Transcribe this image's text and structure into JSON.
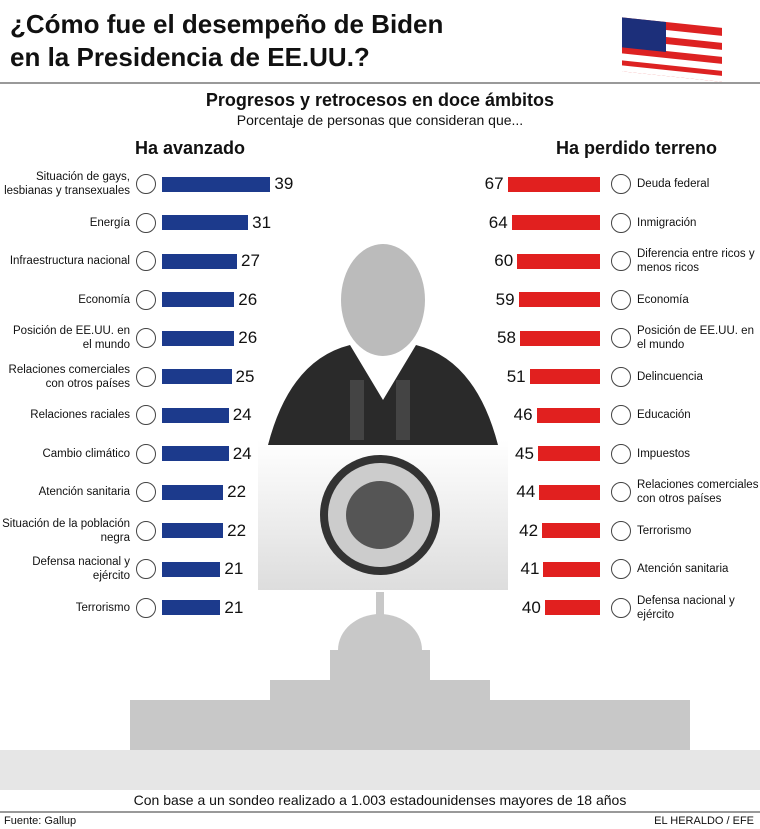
{
  "header": {
    "title": "¿Cómo fue el desempeño de Biden en la Presidencia de EE.UU.?"
  },
  "intro": {
    "heading": "Progresos y retrocesos en doce ámbitos",
    "subheading": "Porcentaje de personas que consideran que..."
  },
  "chart_data": [
    {
      "type": "bar",
      "orientation": "horizontal",
      "title": "Ha avanzado",
      "color": "#1c3a8c",
      "categories": [
        "Situación de gays, lesbianas y transexuales",
        "Energía",
        "Infraestructura nacional",
        "Economía",
        "Posición de EE.UU. en el mundo",
        "Relaciones comerciales con otros países",
        "Relaciones raciales",
        "Cambio climático",
        "Atención sanitaria",
        "Situación de la población negra",
        "Defensa nacional y ejército",
        "Terrorismo"
      ],
      "values": [
        39,
        31,
        27,
        26,
        26,
        25,
        24,
        24,
        22,
        22,
        21,
        21
      ]
    },
    {
      "type": "bar",
      "orientation": "horizontal",
      "title": "Ha perdido terreno",
      "color": "#e1201f",
      "categories": [
        "Deuda federal",
        "Inmigración",
        "Diferencia entre ricos y menos ricos",
        "Economía",
        "Posición de EE.UU. en el mundo",
        "Delincuencia",
        "Educación",
        "Impuestos",
        "Relaciones comerciales con otros países",
        "Terrorismo",
        "Atención sanitaria",
        "Defensa nacional y ejército"
      ],
      "values": [
        67,
        64,
        60,
        59,
        58,
        51,
        46,
        45,
        44,
        42,
        41,
        40
      ]
    }
  ],
  "footer": {
    "note": "Con base a un sondeo realizado a 1.003 estadounidenses mayores de 18 años",
    "source": "Fuente: Gallup",
    "credit": "EL HERALDO / EFE"
  }
}
